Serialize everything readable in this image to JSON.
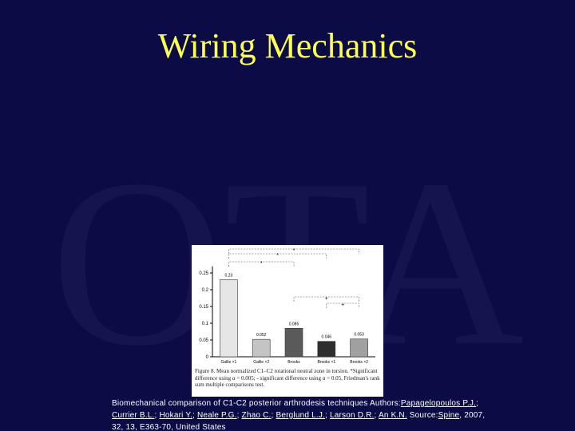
{
  "title": "Wiring Mechanics",
  "watermark": "OTA",
  "chart_data": {
    "type": "bar",
    "categories": [
      "Gallie ×1",
      "Gallie ×2",
      "Brooks",
      "Brooks ×1",
      "Brooks ×2"
    ],
    "values": [
      0.23,
      0.052,
      0.085,
      0.046,
      0.053
    ],
    "colors": [
      "#e6e6e6",
      "#c4c4c4",
      "#5a5a5a",
      "#2e2e2e",
      "#a0a0a0"
    ],
    "ylim": [
      0,
      0.27
    ],
    "yticks": [
      0,
      0.05,
      0.1,
      0.15,
      0.2,
      0.25
    ],
    "significance_labels": [
      "*",
      "*",
      "*",
      "+",
      "+"
    ],
    "caption": "Figure 8. Mean normalized C1–C2 rotational neutral zone in torsion. *Significant difference using α = 0.005; - significant difference using α = 0.05, Friedman's rank sum multiple comparisons test."
  },
  "citation": [
    {
      "text": "Biomechanical comparison of C1-C2 posterior arthrodesis techniques Authors:"
    },
    {
      "text": "Papagelopoulos P.J.",
      "link": true
    },
    {
      "text": "; "
    },
    {
      "text": "Currier B.L.",
      "link": true
    },
    {
      "text": "; "
    },
    {
      "text": "Hokari Y.",
      "link": true
    },
    {
      "text": "; "
    },
    {
      "text": "Neale P.G.",
      "link": true
    },
    {
      "text": "; "
    },
    {
      "text": "Zhao C.",
      "link": true
    },
    {
      "text": "; "
    },
    {
      "text": "Berglund L.J.",
      "link": true
    },
    {
      "text": "; "
    },
    {
      "text": "Larson D.R.",
      "link": true
    },
    {
      "text": "; "
    },
    {
      "text": "An K.N.",
      "link": true
    },
    {
      "text": " Source:"
    },
    {
      "text": "Spine",
      "link": true
    },
    {
      "text": ", 2007, 32, 13, E363-70, United States"
    }
  ]
}
